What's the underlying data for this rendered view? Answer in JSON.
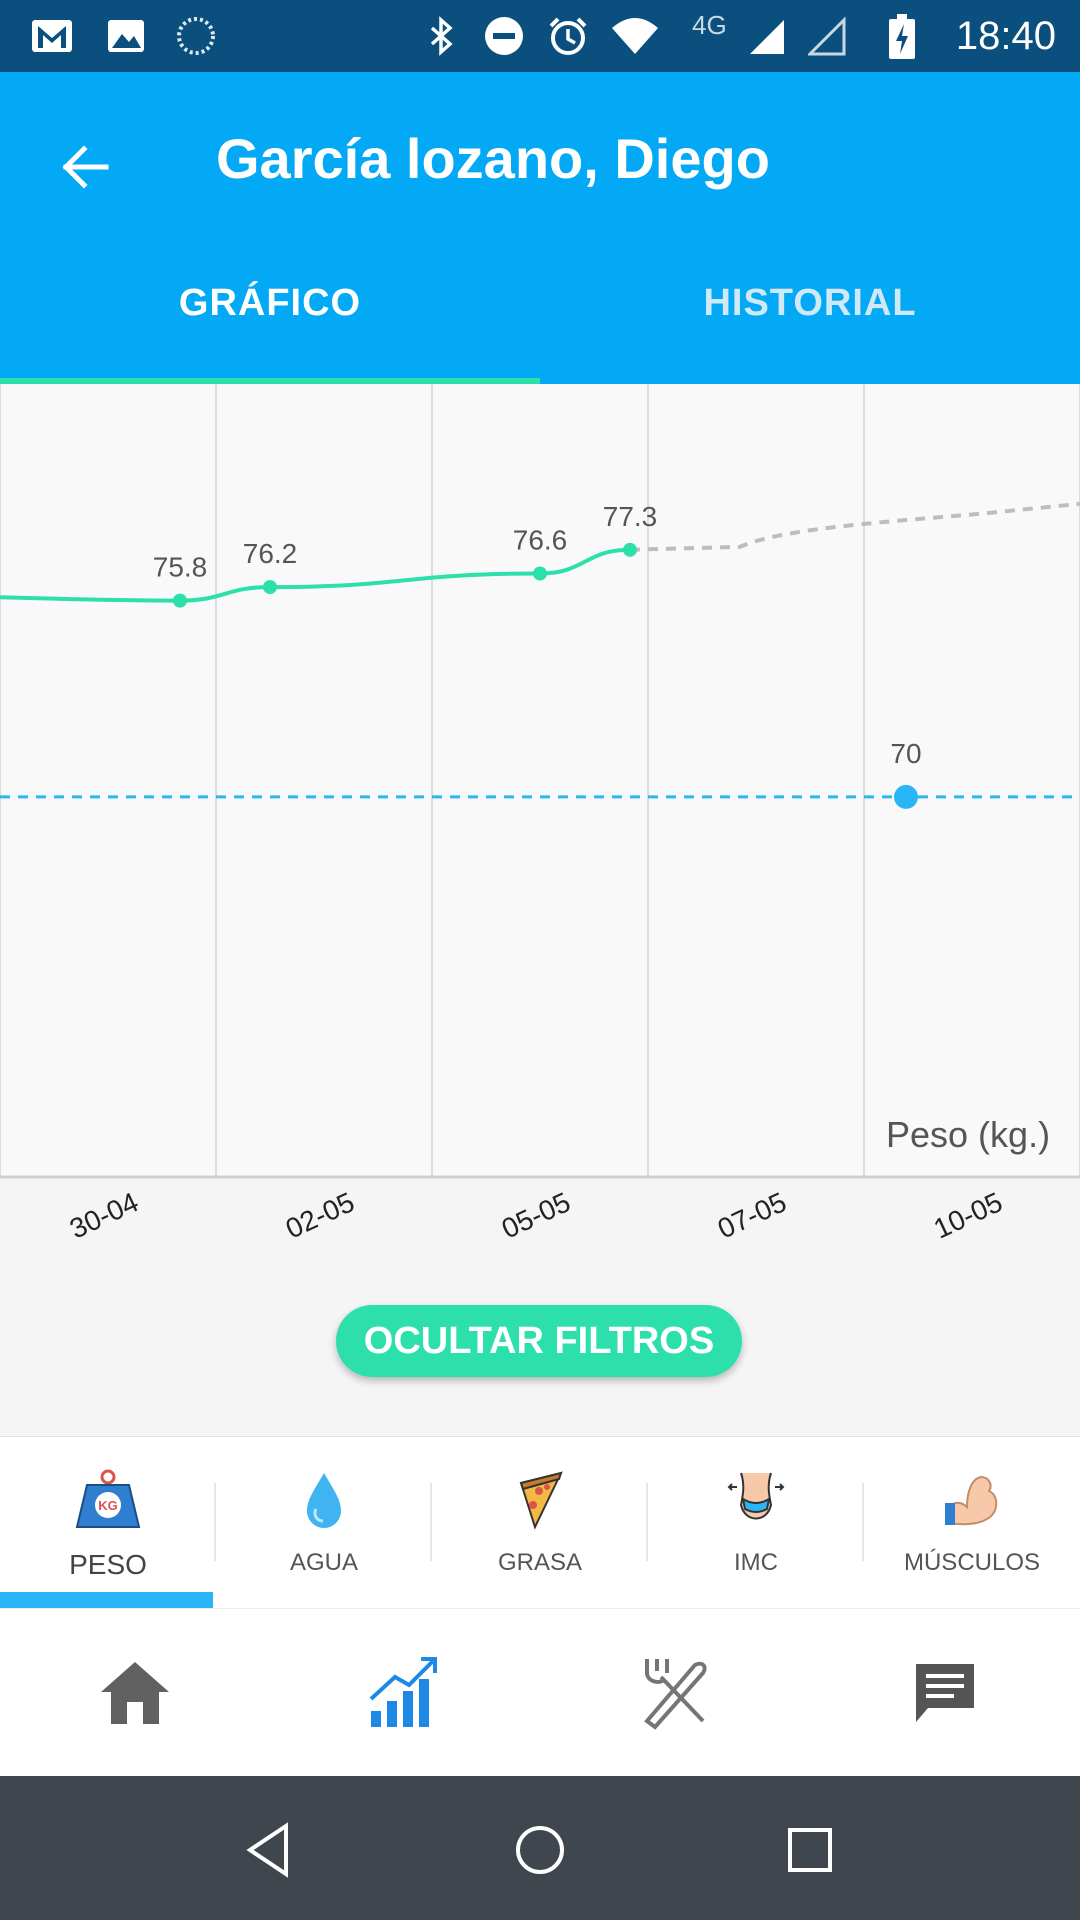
{
  "status_bar": {
    "time": "18:40",
    "network": "4G",
    "icons": [
      "gmail-icon",
      "gallery-icon",
      "sync-icon",
      "bluetooth-icon",
      "dnd-icon",
      "alarm-icon",
      "wifi-icon",
      "signal-icon",
      "signal-empty-icon",
      "battery-charging-icon"
    ]
  },
  "header": {
    "title": "García lozano, Diego",
    "back_icon": "arrow-left-icon",
    "tabs": [
      {
        "label": "GRÁFICO",
        "active": true
      },
      {
        "label": "HISTORIAL",
        "active": false
      }
    ]
  },
  "chart_data": {
    "type": "line",
    "unit_label": "Peso (kg.)",
    "x_tick_labels": [
      "30-04",
      "02-05",
      "05-05",
      "07-05",
      "10-05"
    ],
    "series": [
      {
        "values": [
          75.8,
          76.2,
          76.6,
          77.3
        ],
        "value_labels": [
          "75.8",
          "76.2",
          "76.6",
          "77.3"
        ],
        "color": "#2de0ab"
      }
    ],
    "target": {
      "value": 70,
      "label": "70",
      "color": "#29b6f6"
    },
    "projection_color": "#bdbdbd",
    "grid": true
  },
  "filter_button": {
    "label": "OCULTAR FILTROS"
  },
  "metrics": [
    {
      "label": "PESO",
      "icon": "weight-kg-icon",
      "active": true
    },
    {
      "label": "AGUA",
      "icon": "water-drop-icon",
      "active": false
    },
    {
      "label": "GRASA",
      "icon": "pizza-slice-icon",
      "active": false
    },
    {
      "label": "IMC",
      "icon": "waist-measure-icon",
      "active": false
    },
    {
      "label": "MÚSCULOS",
      "icon": "flexed-biceps-icon",
      "active": false
    }
  ],
  "bottom_nav": [
    {
      "icon": "home-icon",
      "active": false
    },
    {
      "icon": "chart-growth-icon",
      "active": true
    },
    {
      "icon": "fork-knife-icon",
      "active": false
    },
    {
      "icon": "message-icon",
      "active": false
    }
  ],
  "colors": {
    "primary": "#03a9f4",
    "accent": "#2de0ab",
    "status_bar": "#0a4f7d"
  }
}
